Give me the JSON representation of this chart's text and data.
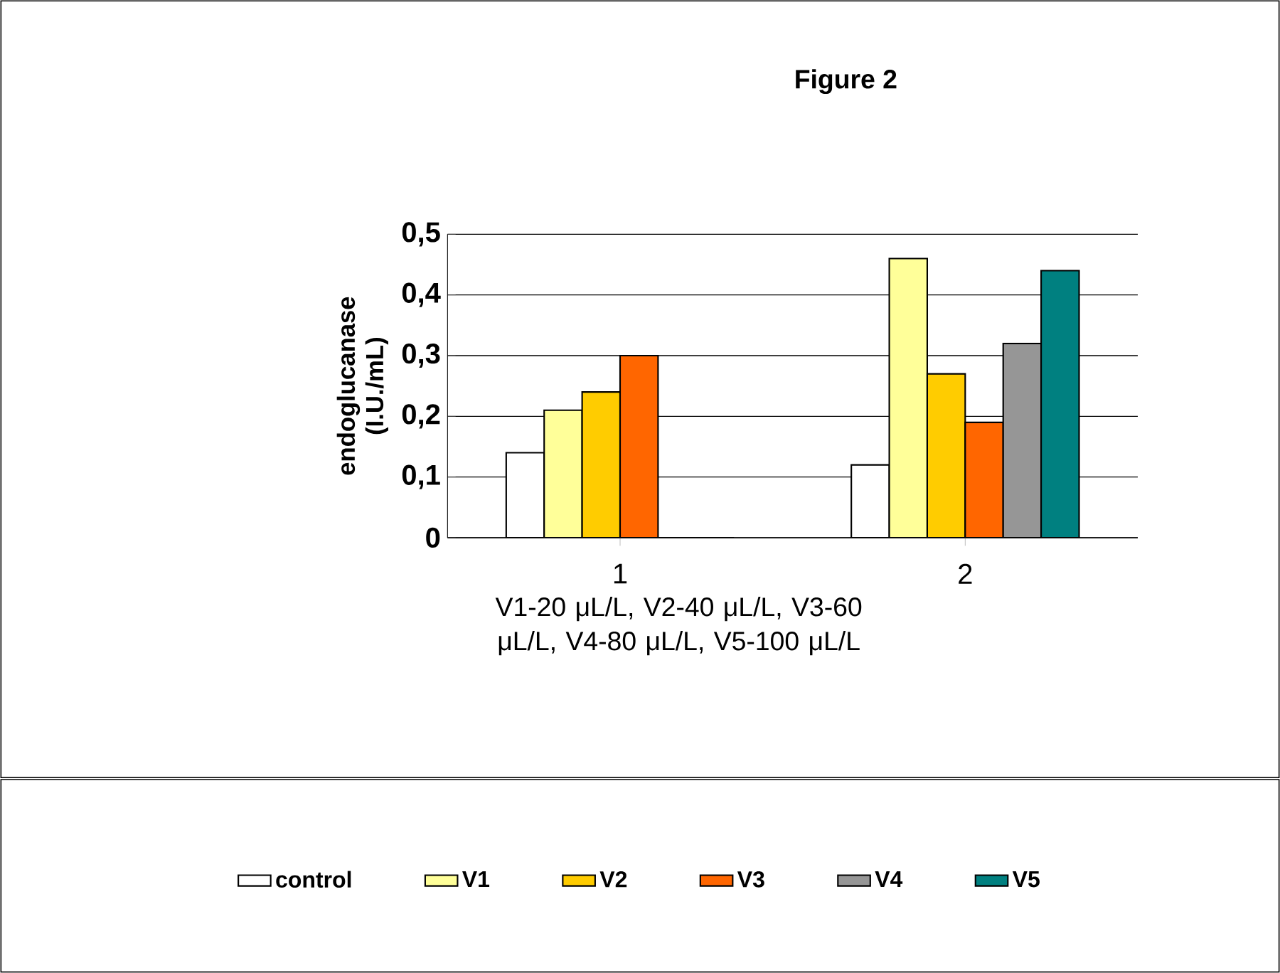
{
  "chart_data": {
    "type": "bar",
    "title": "Figure 2",
    "xlabel": "V1-20 μL/L, V2-40 μL/L, V3-60 μL/L, V4-80 μL/L, V5-100 μL/L",
    "ylabel": "endoglucanase (I.U./mL)",
    "categories": [
      "1",
      "2"
    ],
    "series": [
      {
        "name": "control",
        "color": "#ffffff",
        "values": [
          0.14,
          0.12
        ]
      },
      {
        "name": "V1",
        "color": "#ffff99",
        "values": [
          0.21,
          0.46
        ]
      },
      {
        "name": "V2",
        "color": "#ffcc00",
        "values": [
          0.24,
          0.27
        ]
      },
      {
        "name": "V3",
        "color": "#ff6600",
        "values": [
          0.3,
          0.19
        ]
      },
      {
        "name": "V4",
        "color": "#969696",
        "values": [
          0,
          0.32
        ]
      },
      {
        "name": "V5",
        "color": "#008080",
        "values": [
          0,
          0.44
        ]
      }
    ],
    "ylim": [
      0,
      0.5
    ],
    "yticks": [
      0,
      {
        "value": 0.1,
        "label": "0,1"
      },
      {
        "value": 0.2,
        "label": "0,2"
      },
      {
        "value": 0.3,
        "label": "0,3"
      },
      {
        "value": 0.4,
        "label": "0,4"
      },
      {
        "value": 0.5,
        "label": "0,5"
      }
    ],
    "grid": "y",
    "legend": "bottom"
  }
}
